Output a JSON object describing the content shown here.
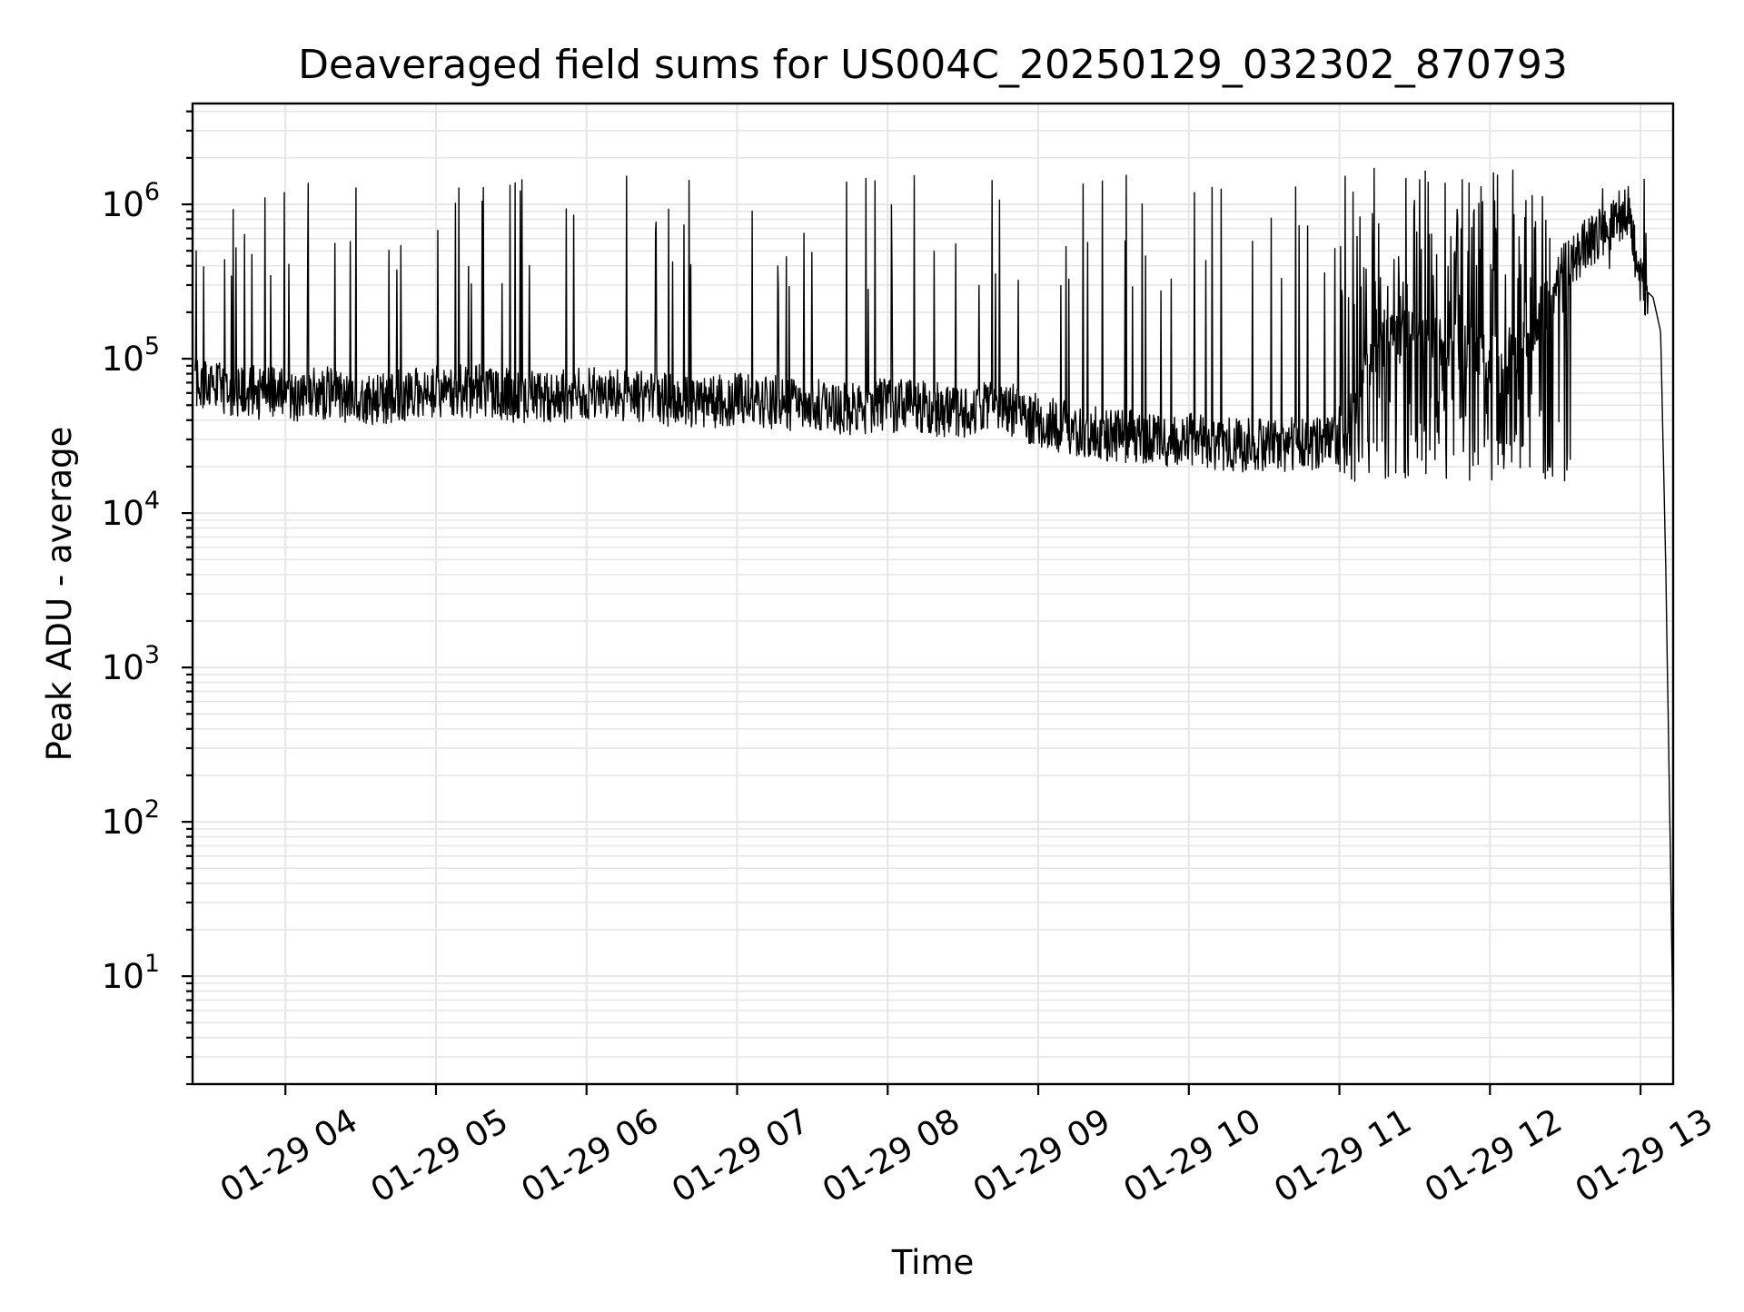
{
  "chart_data": {
    "type": "line",
    "title": "Deaveraged field sums for US004C_20250129_032302_870793",
    "xlabel": "Time",
    "ylabel": "Peak ADU - average",
    "yscale": "log",
    "grid": true,
    "ylim": [
      2,
      4500000
    ],
    "xlim": [
      "2025-01-29 03:23",
      "2025-01-29 13:13"
    ],
    "x_ticks": [
      "01-29 04",
      "01-29 05",
      "01-29 06",
      "01-29 07",
      "01-29 08",
      "01-29 09",
      "01-29 10",
      "01-29 11",
      "01-29 12",
      "01-29 13"
    ],
    "y_ticks": [
      {
        "value": 10,
        "base": "10",
        "exp": "1"
      },
      {
        "value": 100,
        "base": "10",
        "exp": "2"
      },
      {
        "value": 1000,
        "base": "10",
        "exp": "3"
      },
      {
        "value": 10000,
        "base": "10",
        "exp": "4"
      },
      {
        "value": 100000,
        "base": "10",
        "exp": "5"
      },
      {
        "value": 1000000,
        "base": "10",
        "exp": "6"
      }
    ],
    "series": [
      {
        "color": "#000000",
        "x": [
          "2025-01-29 03:24",
          "2025-01-29 03:30",
          "2025-01-29 03:40",
          "2025-01-29 03:50",
          "2025-01-29 04:00",
          "2025-01-29 04:15",
          "2025-01-29 04:30",
          "2025-01-29 04:45",
          "2025-01-29 05:00",
          "2025-01-29 05:15",
          "2025-01-29 05:30",
          "2025-01-29 05:45",
          "2025-01-29 06:00",
          "2025-01-29 06:15",
          "2025-01-29 06:30",
          "2025-01-29 06:45",
          "2025-01-29 07:00",
          "2025-01-29 07:15",
          "2025-01-29 07:30",
          "2025-01-29 07:45",
          "2025-01-29 08:00",
          "2025-01-29 08:15",
          "2025-01-29 08:30",
          "2025-01-29 08:45",
          "2025-01-29 09:00",
          "2025-01-29 09:15",
          "2025-01-29 09:30",
          "2025-01-29 09:45",
          "2025-01-29 10:00",
          "2025-01-29 10:15",
          "2025-01-29 10:30",
          "2025-01-29 10:45",
          "2025-01-29 11:00",
          "2025-01-29 11:15",
          "2025-01-29 11:30",
          "2025-01-29 11:45",
          "2025-01-29 12:00",
          "2025-01-29 12:15",
          "2025-01-29 12:30",
          "2025-01-29 12:45",
          "2025-01-29 12:55",
          "2025-01-29 13:00",
          "2025-01-29 13:05",
          "2025-01-29 13:08",
          "2025-01-29 13:10",
          "2025-01-29 13:12",
          "2025-01-29 13:13"
        ],
        "y": [
          70000,
          65000,
          62000,
          60000,
          58000,
          60000,
          55000,
          57000,
          60000,
          62000,
          58000,
          56000,
          60000,
          58000,
          55000,
          52000,
          55000,
          52000,
          50000,
          48000,
          50000,
          48000,
          45000,
          50000,
          40000,
          35000,
          32000,
          30000,
          30000,
          28000,
          27000,
          28000,
          30000,
          120000,
          150000,
          120000,
          100000,
          120000,
          400000,
          700000,
          900000,
          300000,
          250000,
          150000,
          5000,
          50,
          4
        ]
      }
    ],
    "spikes": {
      "note": "dense spikes reaching ~1e6 throughout; very dense fluctuation 11:00-12:30"
    }
  }
}
